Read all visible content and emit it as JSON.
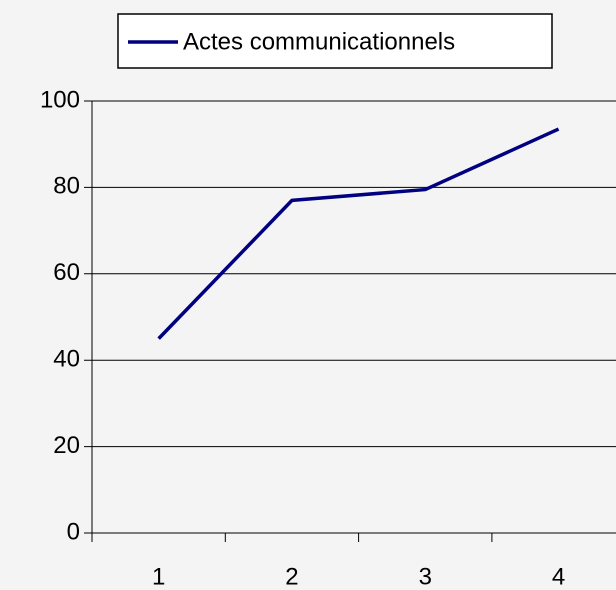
{
  "chart_data": {
    "type": "line",
    "categories": [
      "1",
      "2",
      "3",
      "4"
    ],
    "series": [
      {
        "name": "Actes communicationnels",
        "color": "#000080",
        "values": [
          45,
          77,
          79.5,
          93.5
        ]
      }
    ],
    "ylim": [
      0,
      100
    ],
    "yticks": [
      0,
      20,
      40,
      60,
      80,
      100
    ],
    "grid": true,
    "legend": "top"
  }
}
